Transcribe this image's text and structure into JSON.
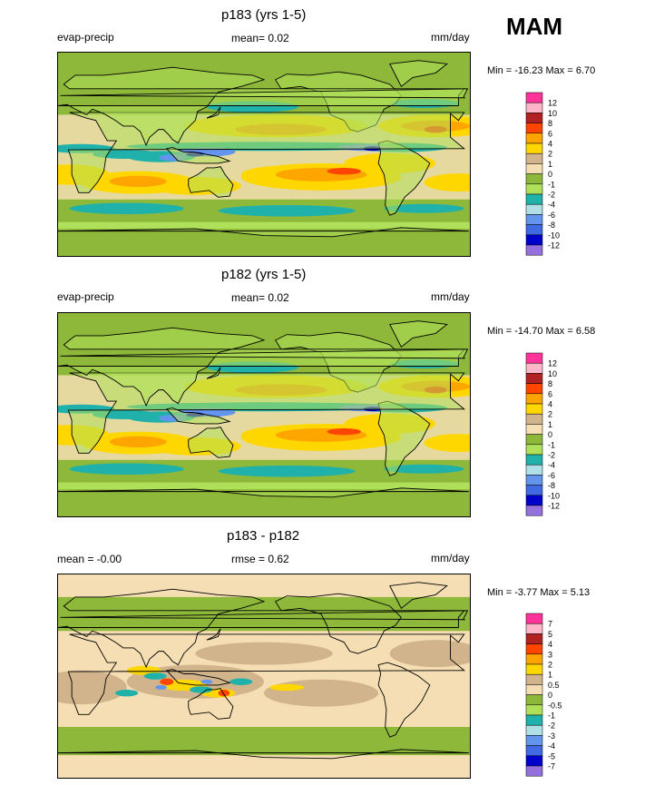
{
  "season": "MAM",
  "colors": {
    "base12": [
      "#ff3399",
      "#ffb6c8",
      "#b22222",
      "#ff4500",
      "#ffa500",
      "#ffd700",
      "#d2b48c",
      "#f5deb3",
      "#8db83a",
      "#b0e05a",
      "#20b2aa",
      "#b0e0e6",
      "#6495ed",
      "#4169e1",
      "#0000cd",
      "#9370db"
    ],
    "diff": [
      "#ff3399",
      "#ffb6c8",
      "#b22222",
      "#ff4500",
      "#ffa500",
      "#ffd700",
      "#d2b48c",
      "#f5deb3",
      "#8db83a",
      "#b0e05a",
      "#20b2aa",
      "#b0e0e6",
      "#6495ed",
      "#4169e1",
      "#0000cd",
      "#9370db"
    ]
  },
  "chart_data": [
    {
      "type": "heatmap",
      "title": "p183 (yrs 1-5)",
      "left_label": "evap-precip",
      "mean_text": "mean=  0.02",
      "units": "mm/day",
      "minmax_text": "Min = -16.23 Max =   6.70",
      "min": -16.23,
      "max": 6.7,
      "colorbar_levels": [
        "12",
        "10",
        "8",
        "6",
        "4",
        "2",
        "1",
        "0",
        "-1",
        "-2",
        "-4",
        "-6",
        "-8",
        "-10",
        "-12"
      ]
    },
    {
      "type": "heatmap",
      "title": "p182 (yrs 1-5)",
      "left_label": "evap-precip",
      "mean_text": "mean=  0.02",
      "units": "mm/day",
      "minmax_text": "Min = -14.70 Max =   6.58",
      "min": -14.7,
      "max": 6.58,
      "colorbar_levels": [
        "12",
        "10",
        "8",
        "6",
        "4",
        "2",
        "1",
        "0",
        "-1",
        "-2",
        "-4",
        "-6",
        "-8",
        "-10",
        "-12"
      ]
    },
    {
      "type": "heatmap",
      "title": "p183 - p182",
      "left_label": "mean =  -0.00",
      "mean_text": "rmse =  0.62",
      "units": "mm/day",
      "minmax_text": "Min =  -3.77 Max =   5.13",
      "min": -3.77,
      "max": 5.13,
      "colorbar_levels": [
        "7",
        "5",
        "4",
        "3",
        "2",
        "1",
        "0.5",
        "0",
        "-0.5",
        "-1",
        "-2",
        "-3",
        "-4",
        "-5",
        "-7"
      ]
    }
  ]
}
